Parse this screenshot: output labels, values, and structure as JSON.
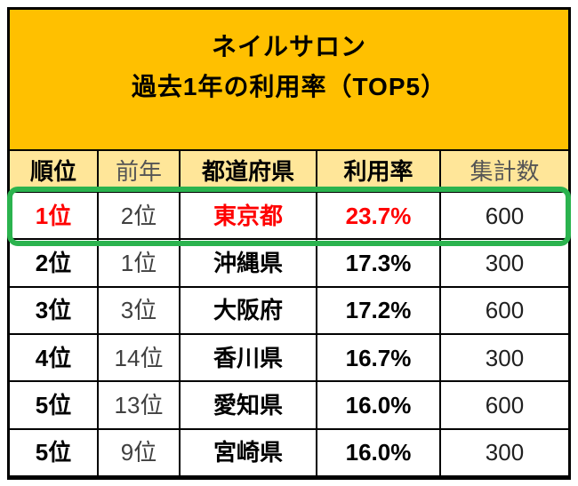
{
  "title": {
    "line1": "ネイルサロン",
    "line2": "過去1年の利用率（TOP5）"
  },
  "chart_data": {
    "type": "table",
    "title": "ネイルサロン 過去1年の利用率（TOP5）",
    "columns": [
      "順位",
      "前年",
      "都道府県",
      "利用率",
      "集計数"
    ],
    "rows": [
      {
        "rank": "1位",
        "prev_year": "2位",
        "prefecture": "東京都",
        "usage_rate": "23.7%",
        "sample_size": "600",
        "highlighted": true
      },
      {
        "rank": "2位",
        "prev_year": "1位",
        "prefecture": "沖縄県",
        "usage_rate": "17.3%",
        "sample_size": "300",
        "highlighted": false
      },
      {
        "rank": "3位",
        "prev_year": "3位",
        "prefecture": "大阪府",
        "usage_rate": "17.2%",
        "sample_size": "600",
        "highlighted": false
      },
      {
        "rank": "4位",
        "prev_year": "14位",
        "prefecture": "香川県",
        "usage_rate": "16.7%",
        "sample_size": "300",
        "highlighted": false
      },
      {
        "rank": "5位",
        "prev_year": "13位",
        "prefecture": "愛知県",
        "usage_rate": "16.0%",
        "sample_size": "600",
        "highlighted": false
      },
      {
        "rank": "5位",
        "prev_year": "9位",
        "prefecture": "宮崎県",
        "usage_rate": "16.0%",
        "sample_size": "300",
        "highlighted": false
      }
    ],
    "highlight_note": "1位（東京都）の行が赤文字と緑の枠で強調"
  },
  "colors": {
    "title_bg": "#FFC000",
    "header_bg": "#FFE699",
    "row_bg": "#FFFFFF",
    "border": "#000000",
    "highlight_ring": "#2BB34E",
    "highlight_text": "#FF0000",
    "muted_text": "#555555"
  }
}
